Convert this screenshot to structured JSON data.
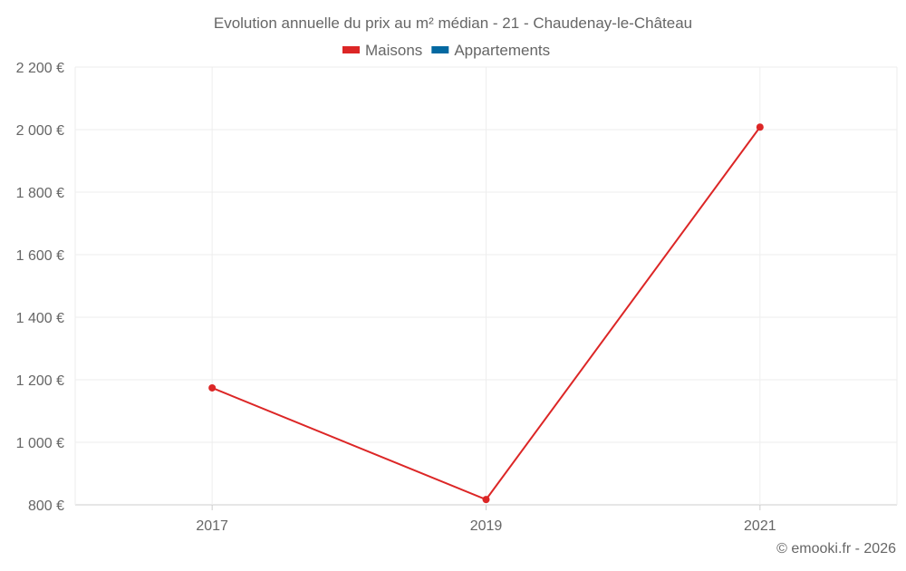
{
  "chart_data": {
    "type": "line",
    "title": "Evolution annuelle du prix au m² médian - 21 - Chaudenay-le-Château",
    "categories": [
      "2017",
      "2019",
      "2021"
    ],
    "series": [
      {
        "name": "Maisons",
        "color": "#dc2626",
        "values": [
          1174,
          817,
          2008
        ]
      },
      {
        "name": "Appartements",
        "color": "#0369a1",
        "values": [
          null,
          null,
          null
        ]
      }
    ],
    "ylim": [
      800,
      2200
    ],
    "yticks": [
      800,
      1000,
      1200,
      1400,
      1600,
      1800,
      2000,
      2200
    ],
    "ytick_labels": [
      "800 €",
      "1 000 €",
      "1 200 €",
      "1 400 €",
      "1 600 €",
      "1 800 €",
      "2 000 €",
      "2 200 €"
    ],
    "xlabel": "",
    "ylabel": "",
    "grid": true,
    "legend_position": "top-center"
  },
  "credit": "© emooki.fr - 2026"
}
